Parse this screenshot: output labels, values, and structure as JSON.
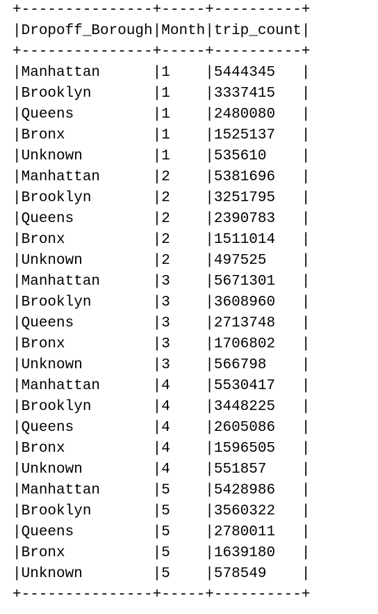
{
  "columns": [
    "Dropoff_Borough",
    "Month",
    "trip_count"
  ],
  "rows": [
    [
      "Manhattan",
      "1",
      "5444345"
    ],
    [
      "Brooklyn",
      "1",
      "3337415"
    ],
    [
      "Queens",
      "1",
      "2480080"
    ],
    [
      "Bronx",
      "1",
      "1525137"
    ],
    [
      "Unknown",
      "1",
      "535610"
    ],
    [
      "Manhattan",
      "2",
      "5381696"
    ],
    [
      "Brooklyn",
      "2",
      "3251795"
    ],
    [
      "Queens",
      "2",
      "2390783"
    ],
    [
      "Bronx",
      "2",
      "1511014"
    ],
    [
      "Unknown",
      "2",
      "497525"
    ],
    [
      "Manhattan",
      "3",
      "5671301"
    ],
    [
      "Brooklyn",
      "3",
      "3608960"
    ],
    [
      "Queens",
      "3",
      "2713748"
    ],
    [
      "Bronx",
      "3",
      "1706802"
    ],
    [
      "Unknown",
      "3",
      "566798"
    ],
    [
      "Manhattan",
      "4",
      "5530417"
    ],
    [
      "Brooklyn",
      "4",
      "3448225"
    ],
    [
      "Queens",
      "4",
      "2605086"
    ],
    [
      "Bronx",
      "4",
      "1596505"
    ],
    [
      "Unknown",
      "4",
      "551857"
    ],
    [
      "Manhattan",
      "5",
      "5428986"
    ],
    [
      "Brooklyn",
      "5",
      "3560322"
    ],
    [
      "Queens",
      "5",
      "2780011"
    ],
    [
      "Bronx",
      "5",
      "1639180"
    ],
    [
      "Unknown",
      "5",
      "578549"
    ]
  ]
}
